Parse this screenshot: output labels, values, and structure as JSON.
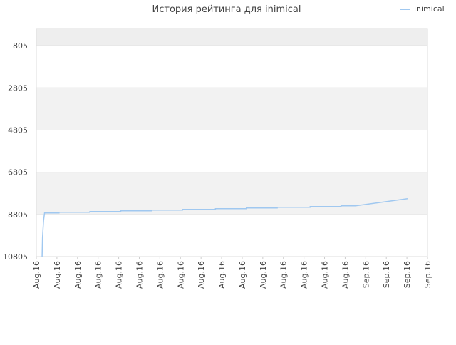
{
  "chart_data": {
    "type": "line",
    "title": "История рейтинга для inimical",
    "xlim": [
      0,
      19
    ],
    "xticks": [
      {
        "value": 0,
        "label": "Aug.16"
      },
      {
        "value": 1,
        "label": "Aug.16"
      },
      {
        "value": 2,
        "label": "Aug.16"
      },
      {
        "value": 3,
        "label": "Aug.16"
      },
      {
        "value": 4,
        "label": "Aug.16"
      },
      {
        "value": 5,
        "label": "Aug.16"
      },
      {
        "value": 6,
        "label": "Aug.16"
      },
      {
        "value": 7,
        "label": "Aug.16"
      },
      {
        "value": 8,
        "label": "Aug.16"
      },
      {
        "value": 9,
        "label": "Aug.16"
      },
      {
        "value": 10,
        "label": "Aug.16"
      },
      {
        "value": 11,
        "label": "Aug.16"
      },
      {
        "value": 12,
        "label": "Aug.16"
      },
      {
        "value": 13,
        "label": "Aug.16"
      },
      {
        "value": 14,
        "label": "Aug.16"
      },
      {
        "value": 15,
        "label": "Aug.16"
      },
      {
        "value": 16,
        "label": "Sep.16"
      },
      {
        "value": 17,
        "label": "Sep.16"
      },
      {
        "value": 18,
        "label": "Sep.16"
      },
      {
        "value": 19,
        "label": "Sep.16"
      }
    ],
    "ylim": [
      10805,
      -9
    ],
    "yticks": [
      805,
      2805,
      4805,
      6805,
      8805,
      10805
    ],
    "grid": true,
    "legend": "top-right",
    "series": [
      {
        "name": "inimical",
        "color": "#a0c8f0",
        "x": [
          0.28,
          0.3,
          0.35,
          0.4,
          1.1,
          1.1,
          2.6,
          2.6,
          4.1,
          4.1,
          5.6,
          5.6,
          7.1,
          7.1,
          8.7,
          8.7,
          10.2,
          10.2,
          11.7,
          11.7,
          13.3,
          13.3,
          14.8,
          14.8,
          15.5,
          18.03
        ],
        "values": [
          10805,
          9900,
          9100,
          8737,
          8737,
          8703,
          8703,
          8669,
          8669,
          8635,
          8635,
          8601,
          8601,
          8568,
          8568,
          8534,
          8534,
          8500,
          8500,
          8466,
          8466,
          8432,
          8432,
          8398,
          8398,
          8059
        ]
      }
    ]
  }
}
